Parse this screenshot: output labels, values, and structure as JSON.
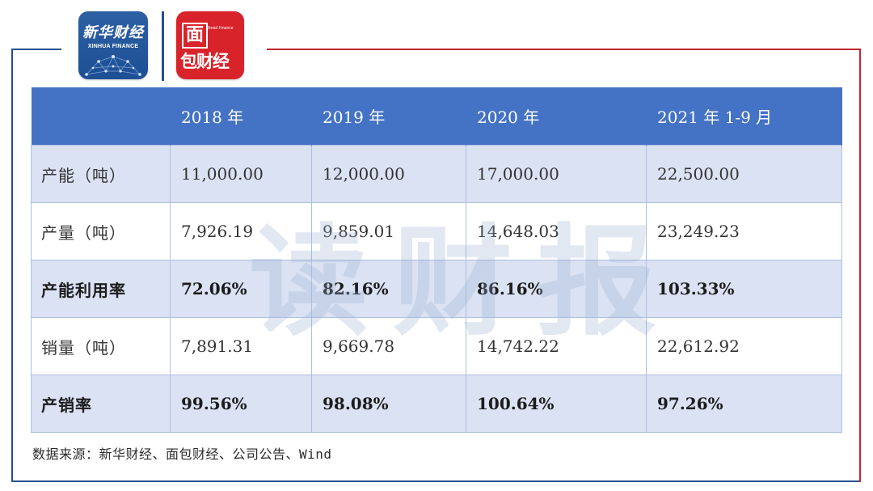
{
  "logos": {
    "xinhua_cn": "新华财经",
    "xinhua_en": "XINHUA FINANCE",
    "mianbao_top": "面",
    "mianbao_tiny": "Bread Finance",
    "mianbao_bottom": "包财经"
  },
  "watermark": "读财报",
  "table": {
    "header": [
      "",
      "2018 年",
      "2019 年",
      "2020 年",
      "2021 年 1-9 月"
    ],
    "rows": [
      {
        "label": "产能（吨）",
        "values": [
          "11,000.00",
          "12,000.00",
          "17,000.00",
          "22,500.00"
        ]
      },
      {
        "label": "产量（吨）",
        "values": [
          "7,926.19",
          "9,859.01",
          "14,648.03",
          "23,249.23"
        ]
      },
      {
        "label": "产能利用率",
        "values": [
          "72.06%",
          "82.16%",
          "86.16%",
          "103.33%"
        ]
      },
      {
        "label": "销量（吨）",
        "values": [
          "7,891.31",
          "9,669.78",
          "14,742.22",
          "22,612.92"
        ]
      },
      {
        "label": "产销率",
        "values": [
          "99.56%",
          "98.08%",
          "100.64%",
          "97.26%"
        ]
      }
    ]
  },
  "source": "数据来源：新华财经、面包财经、公司公告、Wind",
  "colors": {
    "header_bg": "#4473c5",
    "row_shade": "#dae2f3",
    "frame_blue": "#24508f",
    "frame_red": "#c0272d"
  }
}
